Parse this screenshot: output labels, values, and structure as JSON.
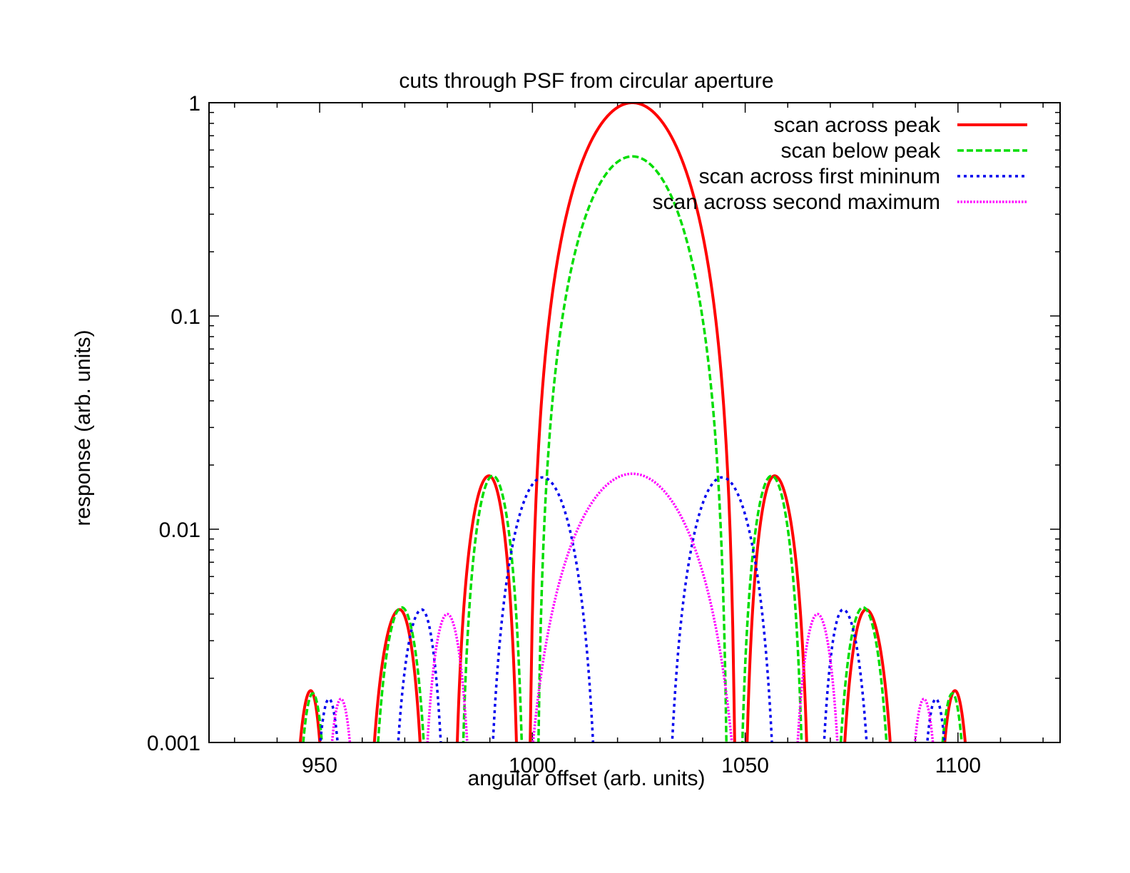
{
  "chart_data": {
    "type": "line",
    "title": "cuts through PSF from circular aperture",
    "xlabel": "angular offset (arb. units)",
    "ylabel": "response (arb. units)",
    "xlim": [
      924,
      1124
    ],
    "ylim": [
      0.001,
      1
    ],
    "yscale": "log",
    "xticks": [
      950,
      1000,
      1050,
      1100
    ],
    "xtick_labels": [
      "950",
      "1000",
      "1050",
      "1100"
    ],
    "yticks": [
      0.001,
      0.01,
      0.1,
      1
    ],
    "ytick_labels": [
      "0.001",
      "0.01",
      "0.1",
      "1"
    ],
    "grid": false,
    "legend_position": "top-right",
    "series": [
      {
        "name": "scan across peak",
        "color": "#ff0000",
        "style": "solid",
        "lobes": [
          {
            "start": 942.5,
            "peak": 947.9,
            "end": 952.6,
            "peak_value": 0.00175
          },
          {
            "start": 960.0,
            "peak": 968.8,
            "end": 975.9,
            "peak_value": 0.0042
          },
          {
            "start": 981.0,
            "peak": 989.8,
            "end": 997.4,
            "peak_value": 0.0178
          },
          {
            "start": 999.0,
            "peak": 1023.5,
            "end": 1048.0,
            "peak_value": 1.0
          },
          {
            "start": 1049.3,
            "peak": 1056.9,
            "end": 1065.8,
            "peak_value": 0.0178
          },
          {
            "start": 1071.0,
            "peak": 1078.4,
            "end": 1086.8,
            "peak_value": 0.0042
          },
          {
            "start": 1094.0,
            "peak": 1099.3,
            "end": 1104.6,
            "peak_value": 0.00175
          }
        ]
      },
      {
        "name": "scan below peak",
        "color": "#00dd00",
        "style": "dashed",
        "lobes": [
          {
            "start": 943.3,
            "peak": 948.4,
            "end": 953.2,
            "peak_value": 0.0017
          },
          {
            "start": 961.1,
            "peak": 969.3,
            "end": 976.9,
            "peak_value": 0.0043
          },
          {
            "start": 982.5,
            "peak": 990.7,
            "end": 998.7,
            "peak_value": 0.0178
          },
          {
            "start": 1000.8,
            "peak": 1023.5,
            "end": 1046.2,
            "peak_value": 0.56
          },
          {
            "start": 1048.1,
            "peak": 1056.2,
            "end": 1064.5,
            "peak_value": 0.0178
          },
          {
            "start": 1070.0,
            "peak": 1077.7,
            "end": 1085.8,
            "peak_value": 0.0043
          },
          {
            "start": 1093.5,
            "peak": 1098.7,
            "end": 1103.6,
            "peak_value": 0.0017
          }
        ]
      },
      {
        "name": "scan across first mininum",
        "color": "#0000ee",
        "style": "dotted",
        "lobes": [
          {
            "start": 947.3,
            "peak": 952.2,
            "end": 957.0,
            "peak_value": 0.0016
          },
          {
            "start": 965.8,
            "peak": 974.0,
            "end": 980.6,
            "peak_value": 0.0042
          },
          {
            "start": 988.6,
            "peak": 1002.4,
            "end": 1016.4,
            "peak_value": 0.0175
          },
          {
            "start": 1030.7,
            "peak": 1044.6,
            "end": 1058.4,
            "peak_value": 0.0175
          },
          {
            "start": 1066.4,
            "peak": 1073.0,
            "end": 1081.2,
            "peak_value": 0.0042
          },
          {
            "start": 1090.0,
            "peak": 1094.8,
            "end": 1099.7,
            "peak_value": 0.0016
          }
        ]
      },
      {
        "name": "scan across second maximum",
        "color": "#ff00ff",
        "style": "dotted-fine",
        "lobes": [
          {
            "start": 950.0,
            "peak": 955.0,
            "end": 960.0,
            "peak_value": 0.0016
          },
          {
            "start": 973.0,
            "peak": 980.0,
            "end": 987.0,
            "peak_value": 0.004
          },
          {
            "start": 996.0,
            "peak": 1023.5,
            "end": 1051.0,
            "peak_value": 0.0182
          },
          {
            "start": 1060.0,
            "peak": 1067.0,
            "end": 1074.0,
            "peak_value": 0.004
          },
          {
            "start": 1087.0,
            "peak": 1092.0,
            "end": 1097.0,
            "peak_value": 0.0016
          }
        ]
      }
    ]
  }
}
